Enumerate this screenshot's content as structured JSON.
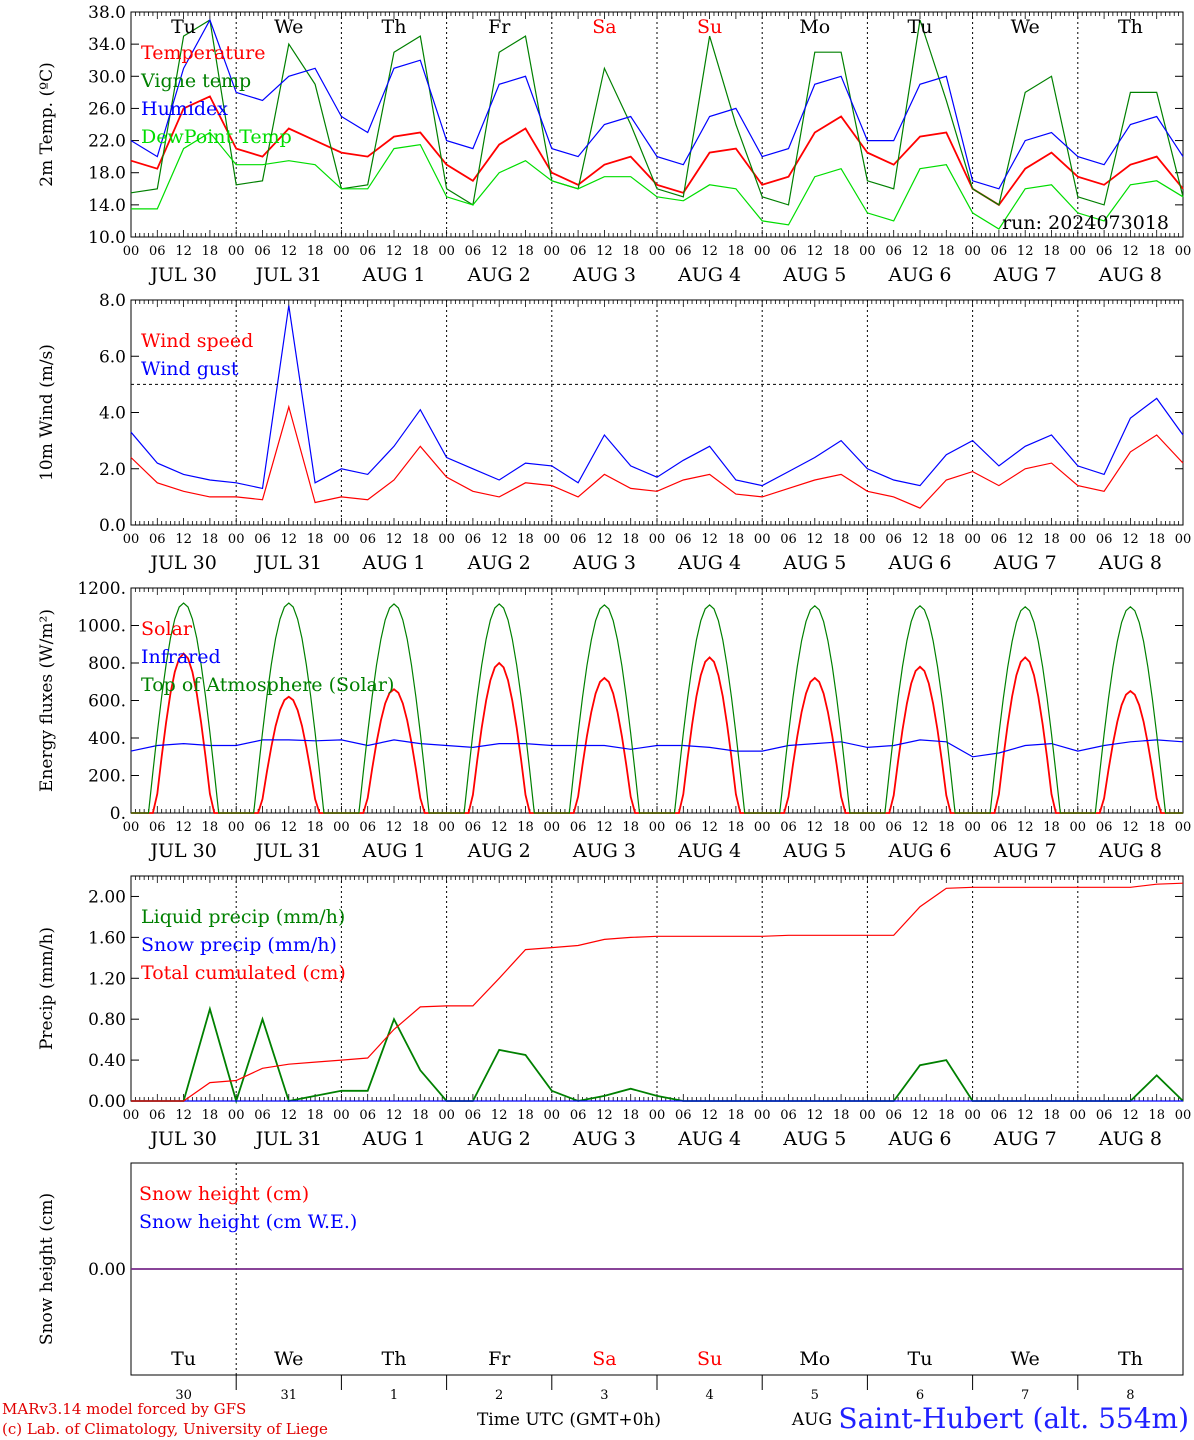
{
  "chart_data": [
    {
      "type": "line",
      "ylabel": "2m Temp. (ºC)",
      "ylim": [
        10,
        38
      ],
      "yticks": [
        "10.0",
        "14.0",
        "18.0",
        "22.0",
        "26.0",
        "30.0",
        "34.0",
        "38.0"
      ],
      "run_label": "run: 2024073018",
      "series": [
        {
          "name": "Temperature",
          "color": "#ff0000",
          "step_hours": 6,
          "values": [
            19.5,
            18.5,
            26,
            27.5,
            21,
            20,
            23.5,
            22,
            20.5,
            20,
            22.5,
            23,
            19,
            17,
            21.5,
            23.5,
            18,
            16.5,
            19,
            20,
            16.5,
            15.5,
            20.5,
            21,
            16.5,
            17.5,
            23,
            25,
            20.5,
            19,
            22.5,
            23,
            16,
            14,
            18.5,
            20.5,
            17.5,
            16.5,
            19,
            20,
            16
          ]
        },
        {
          "name": "Vigne temp",
          "color": "#008000",
          "step_hours": 6,
          "values": [
            15.5,
            16,
            35,
            37,
            16.5,
            17,
            34,
            29,
            16,
            16.5,
            33,
            35,
            16,
            14,
            33,
            35,
            17,
            16,
            31,
            24,
            16,
            15,
            35,
            24,
            15,
            14,
            33,
            33,
            17,
            16,
            37,
            27,
            16,
            14,
            28,
            30,
            15,
            14,
            28,
            28,
            15
          ]
        },
        {
          "name": "Humidex",
          "color": "#0000ff",
          "step_hours": 6,
          "values": [
            22,
            20,
            31,
            37,
            28,
            27,
            30,
            31,
            25,
            23,
            31,
            32,
            22,
            21,
            29,
            30,
            21,
            20,
            24,
            25,
            20,
            19,
            25,
            26,
            20,
            21,
            29,
            30,
            22,
            22,
            29,
            30,
            17,
            16,
            22,
            23,
            20,
            19,
            24,
            25,
            20
          ]
        },
        {
          "name": "DewPoint Temp",
          "color": "#00dd00",
          "step_hours": 6,
          "values": [
            13.5,
            13.5,
            21,
            23,
            19,
            19,
            19.5,
            19,
            16,
            16,
            21,
            21.5,
            15,
            14,
            18,
            19.5,
            17,
            16,
            17.5,
            17.5,
            15,
            14.5,
            16.5,
            16,
            12,
            11.5,
            17.5,
            18.5,
            13,
            12,
            18.5,
            19,
            13,
            11,
            16,
            16.5,
            13,
            12,
            16.5,
            17,
            15
          ]
        }
      ],
      "day_names": [
        "Tu",
        "We",
        "Th",
        "Fr",
        "Sa",
        "Su",
        "Mo",
        "Tu",
        "We",
        "Th"
      ],
      "weekend_indices": [
        4,
        5
      ]
    },
    {
      "type": "line",
      "ylabel": "10m Wind (m/s)",
      "ylim": [
        0,
        8
      ],
      "yticks": [
        "0.0",
        "2.0",
        "4.0",
        "6.0",
        "8.0"
      ],
      "reference_line": 5,
      "series": [
        {
          "name": "Wind speed",
          "color": "#ff0000",
          "step_hours": 6,
          "values": [
            2.4,
            1.5,
            1.2,
            1.0,
            1.0,
            0.9,
            4.2,
            0.8,
            1.0,
            0.9,
            1.6,
            2.8,
            1.7,
            1.2,
            1.0,
            1.5,
            1.4,
            1.0,
            1.8,
            1.3,
            1.2,
            1.6,
            1.8,
            1.1,
            1.0,
            1.3,
            1.6,
            1.8,
            1.2,
            1.0,
            0.6,
            1.6,
            1.9,
            1.4,
            2.0,
            2.2,
            1.4,
            1.2,
            2.6,
            3.2,
            2.2
          ]
        },
        {
          "name": "Wind gust",
          "color": "#0000ff",
          "step_hours": 6,
          "values": [
            3.3,
            2.2,
            1.8,
            1.6,
            1.5,
            1.3,
            7.8,
            1.5,
            2.0,
            1.8,
            2.8,
            4.1,
            2.4,
            2.0,
            1.6,
            2.2,
            2.1,
            1.5,
            3.2,
            2.1,
            1.7,
            2.3,
            2.8,
            1.6,
            1.4,
            1.9,
            2.4,
            3.0,
            2.0,
            1.6,
            1.4,
            2.5,
            3.0,
            2.1,
            2.8,
            3.2,
            2.1,
            1.8,
            3.8,
            4.5,
            3.2
          ]
        }
      ]
    },
    {
      "type": "line",
      "ylabel": "Energy fluxes (W/m²)",
      "ylim": [
        0,
        1200
      ],
      "yticks": [
        "0.",
        "200.",
        "400.",
        "600.",
        "800.",
        "1000.",
        "1200."
      ],
      "series": [
        {
          "name": "Solar",
          "color": "#ff0000",
          "peak_hour": 12,
          "daily_peaks": [
            850,
            620,
            660,
            800,
            720,
            830,
            720,
            780,
            830,
            650
          ]
        },
        {
          "name": "Infrared",
          "color": "#0000ff",
          "step_hours": 6,
          "values": [
            330,
            360,
            370,
            360,
            360,
            390,
            390,
            385,
            390,
            360,
            390,
            370,
            360,
            350,
            370,
            370,
            360,
            360,
            360,
            340,
            360,
            360,
            350,
            330,
            330,
            360,
            370,
            380,
            350,
            360,
            390,
            380,
            300,
            320,
            360,
            370,
            330,
            360,
            380,
            390,
            380
          ]
        },
        {
          "name": "Top of Atmosphere (Solar)",
          "color": "#008000",
          "peak_hour": 12,
          "daily_peaks": [
            1120,
            1120,
            1115,
            1115,
            1110,
            1110,
            1105,
            1105,
            1100,
            1100
          ]
        }
      ]
    },
    {
      "type": "line",
      "ylabel": "Precip (mm/h)",
      "ylim": [
        0,
        2.2
      ],
      "yticks": [
        "0.00",
        "0.40",
        "0.80",
        "1.20",
        "1.60",
        "2.00"
      ],
      "series": [
        {
          "name": "Liquid precip (mm/h)",
          "color": "#008000",
          "step_hours": 6,
          "values": [
            0,
            0,
            0,
            0.9,
            0,
            0.8,
            0,
            0.05,
            0.1,
            0.1,
            0.8,
            0.3,
            0,
            0,
            0.5,
            0.45,
            0.1,
            0,
            0.05,
            0.12,
            0.05,
            0,
            0,
            0,
            0,
            0,
            0,
            0,
            0,
            0,
            0.35,
            0.4,
            0,
            0,
            0,
            0,
            0,
            0,
            0,
            0.25,
            0
          ]
        },
        {
          "name": "Snow precip (mm/h)",
          "color": "#0000ff",
          "step_hours": 6,
          "values": [
            0,
            0,
            0,
            0,
            0,
            0,
            0,
            0,
            0,
            0,
            0,
            0,
            0,
            0,
            0,
            0,
            0,
            0,
            0,
            0,
            0,
            0,
            0,
            0,
            0,
            0,
            0,
            0,
            0,
            0,
            0,
            0,
            0,
            0,
            0,
            0,
            0,
            0,
            0,
            0,
            0
          ]
        },
        {
          "name": "Total cumulated (cm)",
          "color": "#ff0000",
          "step_hours": 6,
          "values": [
            0,
            0,
            0,
            0.18,
            0.2,
            0.32,
            0.36,
            0.38,
            0.4,
            0.42,
            0.7,
            0.92,
            0.93,
            0.93,
            1.2,
            1.48,
            1.5,
            1.52,
            1.58,
            1.6,
            1.61,
            1.61,
            1.61,
            1.61,
            1.61,
            1.62,
            1.62,
            1.62,
            1.62,
            1.62,
            1.9,
            2.08,
            2.09,
            2.09,
            2.09,
            2.09,
            2.09,
            2.09,
            2.09,
            2.12,
            2.13
          ]
        }
      ]
    },
    {
      "type": "line",
      "ylabel": "Snow height (cm)",
      "yticks": [
        "0.00"
      ],
      "series": [
        {
          "name": "Snow height (cm)",
          "color": "#ff0000",
          "values": [
            0,
            0
          ]
        },
        {
          "name": "Snow height (cm W.E.)",
          "color": "#0000ff",
          "values": [
            0,
            0
          ]
        }
      ]
    }
  ],
  "x_axis": {
    "hour_ticks": [
      "00",
      "06",
      "12",
      "18"
    ],
    "dates": [
      "JUL 30",
      "JUL 31",
      "AUG  1",
      "AUG  2",
      "AUG  3",
      "AUG  4",
      "AUG  5",
      "AUG  6",
      "AUG  7",
      "AUG  8"
    ],
    "day_numbers": [
      "30",
      "31",
      "1",
      "2",
      "3",
      "4",
      "5",
      "6",
      "7",
      "8"
    ],
    "title": "Time UTC (GMT+0h)",
    "overlap_text": "AUG"
  },
  "footer": {
    "line1": "MARv3.14 model forced by GFS",
    "line2": "(c) Lab. of Climatology, University of Liege",
    "station": "Saint-Hubert (alt. 554m)"
  },
  "colors": {
    "weekend": "#ff0000",
    "weekday": "#000000"
  }
}
